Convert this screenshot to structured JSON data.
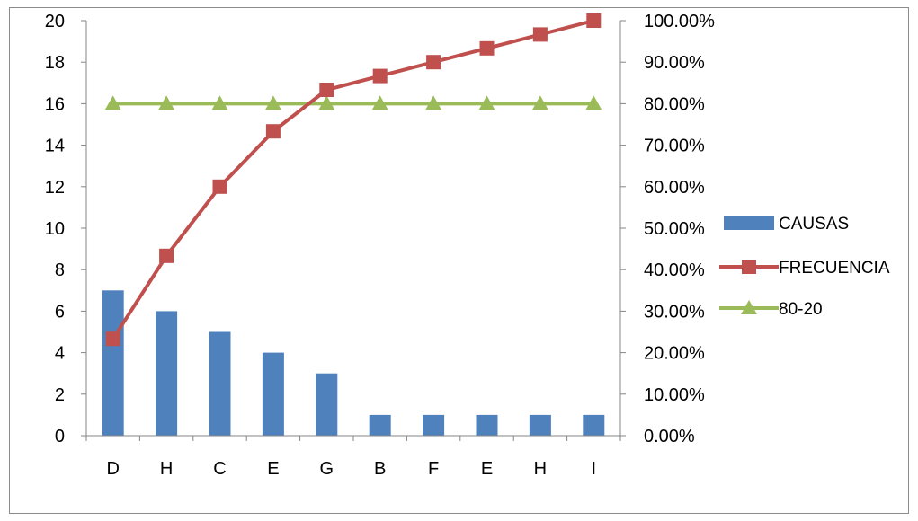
{
  "chart_data": {
    "type": "bar",
    "categories": [
      "D",
      "H",
      "C",
      "E",
      "G",
      "B",
      "F",
      "E",
      "H",
      "I"
    ],
    "series": [
      {
        "name": "CAUSAS",
        "kind": "bar",
        "axis": "left",
        "color": "#4f81bd",
        "values": [
          7,
          6,
          5,
          4,
          3,
          1,
          1,
          1,
          1,
          1
        ]
      },
      {
        "name": "FRECUENCIA",
        "kind": "line",
        "axis": "right",
        "color": "#c0504d",
        "marker": "square",
        "values": [
          0.2333,
          0.4333,
          0.6,
          0.7333,
          0.8333,
          0.8667,
          0.9,
          0.9333,
          0.9667,
          1.0
        ]
      },
      {
        "name": "80-20",
        "kind": "line",
        "axis": "right",
        "color": "#9bbb59",
        "marker": "triangle",
        "values": [
          0.8,
          0.8,
          0.8,
          0.8,
          0.8,
          0.8,
          0.8,
          0.8,
          0.8,
          0.8
        ]
      }
    ],
    "y_left": {
      "ylim": [
        0,
        20
      ],
      "ticks": [
        0,
        2,
        4,
        6,
        8,
        10,
        12,
        14,
        16,
        18,
        20
      ],
      "tick_labels": [
        "0",
        "2",
        "4",
        "6",
        "8",
        "10",
        "12",
        "14",
        "16",
        "18",
        "20"
      ]
    },
    "y_right": {
      "ylim": [
        0,
        1
      ],
      "ticks": [
        0,
        0.1,
        0.2,
        0.3,
        0.4,
        0.5,
        0.6,
        0.7,
        0.8,
        0.9,
        1.0
      ],
      "tick_labels": [
        "0.00%",
        "10.00%",
        "20.00%",
        "30.00%",
        "40.00%",
        "50.00%",
        "60.00%",
        "70.00%",
        "80.00%",
        "90.00%",
        "100.00%"
      ]
    },
    "grid": false,
    "legend": "right",
    "title": "",
    "xlabel": "",
    "ylabel": ""
  }
}
